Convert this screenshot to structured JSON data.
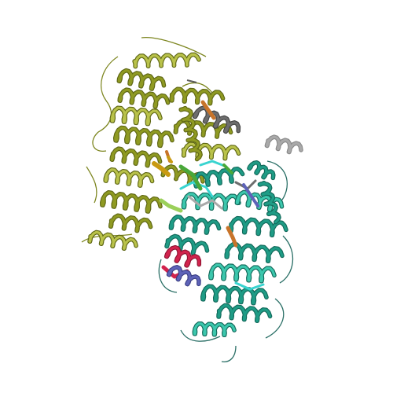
{
  "image": {
    "subject": "protein-ribbon-cartoon",
    "background": "#ffffff"
  },
  "colors": {
    "chain_a": "#8f9a22",
    "chain_a_light": "#b9c24a",
    "chain_a_dark": "#5e6614",
    "chain_b": "#1f9c86",
    "chain_b_light": "#3cc7ad",
    "chain_b_dark": "#12695a",
    "cyan_loops": "#39d4d0",
    "gray": "#6d6d6d",
    "gray_light": "#a9a9a9",
    "orange": "#c8742a",
    "gold": "#c99a12",
    "red": "#d2234d",
    "purple": "#5e63b8",
    "green": "#49a83a",
    "light_green": "#9bd05a"
  }
}
